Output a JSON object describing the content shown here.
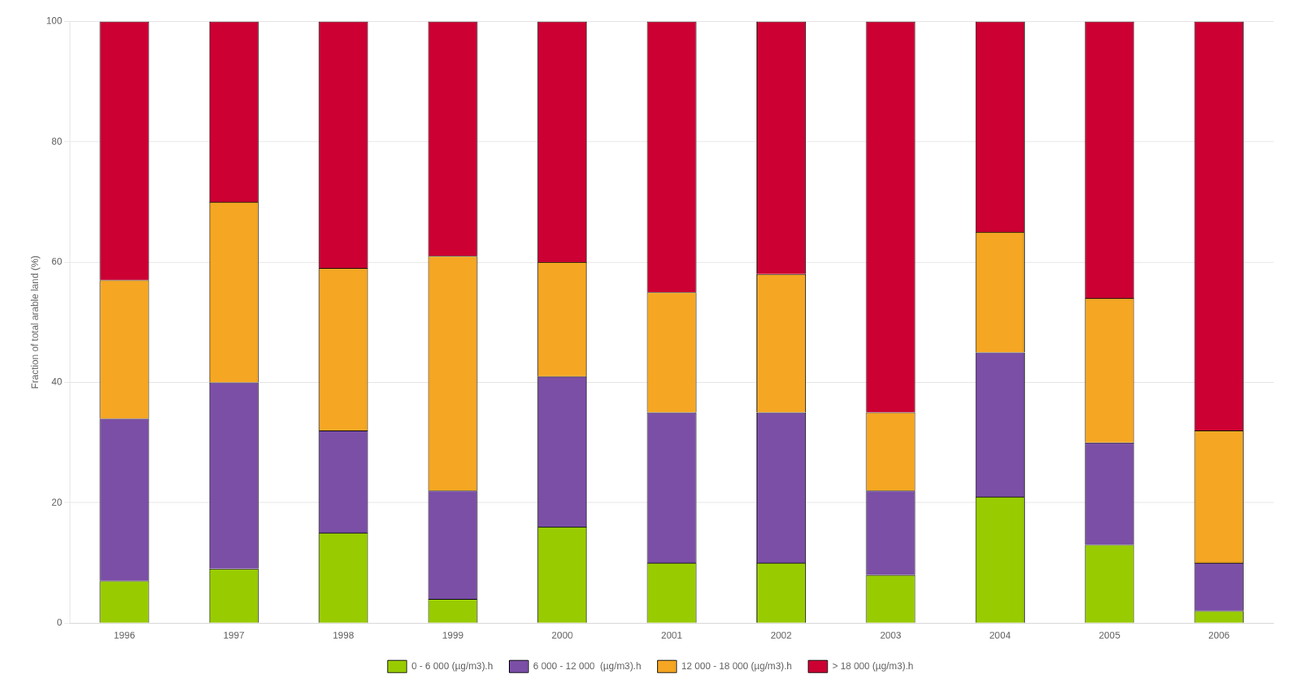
{
  "chart_data": {
    "type": "bar",
    "stacked": true,
    "categories": [
      "1996",
      "1997",
      "1998",
      "1999",
      "2000",
      "2001",
      "2002",
      "2003",
      "2004",
      "2005",
      "2006"
    ],
    "series": [
      {
        "name": "0 - 6 000 (µg/m3).h",
        "color": "#99cc00",
        "values": [
          7,
          9,
          15,
          4,
          16,
          10,
          10,
          8,
          21,
          13,
          2
        ]
      },
      {
        "name": "6 000 - 12 000  (µg/m3).h",
        "color": "#7b4fa6",
        "values": [
          27,
          31,
          17,
          18,
          25,
          25,
          25,
          14,
          24,
          17,
          8
        ]
      },
      {
        "name": "12 000 - 18 000 (µg/m3).h",
        "color": "#f5a623",
        "values": [
          23,
          30,
          27,
          39,
          19,
          20,
          23,
          13,
          20,
          24,
          22
        ]
      },
      {
        "name": "> 18 000 (µg/m3).h",
        "color": "#cc0033",
        "values": [
          43,
          30,
          41,
          39,
          40,
          45,
          42,
          65,
          35,
          46,
          68
        ]
      }
    ],
    "ylabel": "Fraction of total arable land (%)",
    "ylim": [
      0,
      100
    ],
    "yticks": [
      0,
      20,
      40,
      60,
      80,
      100
    ],
    "grid": true,
    "legend": "bottom"
  }
}
